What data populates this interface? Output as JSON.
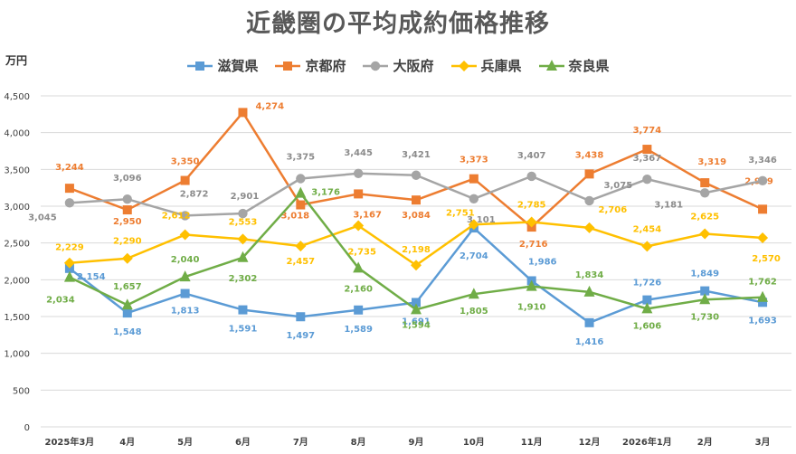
{
  "chart_data": {
    "type": "line",
    "title": "近畿圏の平均成約価格推移",
    "ylabel": "万円",
    "ylim": [
      0,
      4500
    ],
    "yticks": [
      "0",
      "500",
      "1,000",
      "1,500",
      "2,000",
      "2,500",
      "3,000",
      "3,500",
      "4,000",
      "4,500"
    ],
    "categories": [
      "2025年3月",
      "4月",
      "5月",
      "6月",
      "7月",
      "8月",
      "9月",
      "10月",
      "11月",
      "12月",
      "2026年1月",
      "2月",
      "3月"
    ],
    "grid": true,
    "legend": "top",
    "series": [
      {
        "name": "滋賀県",
        "color": "#5b9bd5",
        "marker": "square",
        "values": [
          2154,
          1548,
          1813,
          1591,
          1497,
          1589,
          1691,
          2704,
          1986,
          1416,
          1726,
          1849,
          1693
        ],
        "labels": [
          "2,154",
          "1,548",
          "1,813",
          "1,591",
          "1,497",
          "1,589",
          "1,691",
          "2,704",
          "1,986",
          "1,416",
          "1,726",
          "1,849",
          "1,693"
        ]
      },
      {
        "name": "京都府",
        "color": "#ed7d31",
        "marker": "square",
        "values": [
          3244,
          2950,
          3350,
          4274,
          3018,
          3167,
          3084,
          3373,
          2716,
          3438,
          3774,
          3319,
          2959
        ],
        "labels": [
          "3,244",
          "2,950",
          "3,350",
          "4,274",
          "3,018",
          "3,167",
          "3,084",
          "3,373",
          "2,716",
          "3,438",
          "3,774",
          "3,319",
          "2,959"
        ]
      },
      {
        "name": "大阪府",
        "color": "#a5a5a5",
        "marker": "circle",
        "values": [
          3045,
          3096,
          2872,
          2901,
          3375,
          3445,
          3421,
          3101,
          3407,
          3075,
          3367,
          3181,
          3346
        ],
        "labels": [
          "3,045",
          "3,096",
          "2,872",
          "2,901",
          "3,375",
          "3,445",
          "3,421",
          "3,101",
          "3,407",
          "3,075",
          "3,367",
          "3,181",
          "3,346"
        ]
      },
      {
        "name": "兵庫県",
        "color": "#ffc000",
        "marker": "diamond",
        "values": [
          2229,
          2290,
          2612,
          2553,
          2457,
          2735,
          2198,
          2751,
          2785,
          2706,
          2454,
          2625,
          2570
        ],
        "labels": [
          "2,229",
          "2,290",
          "2,612",
          "2,553",
          "2,457",
          "2,735",
          "2,198",
          "2,751",
          "2,785",
          "2,706",
          "2,454",
          "2,625",
          "2,570"
        ]
      },
      {
        "name": "奈良県",
        "color": "#70ad47",
        "marker": "triangle",
        "values": [
          2034,
          1657,
          2040,
          2302,
          3176,
          2160,
          1594,
          1805,
          1910,
          1834,
          1606,
          1730,
          1762
        ],
        "labels": [
          "2,034",
          "1,657",
          "2,040",
          "2,302",
          "3,176",
          "2,160",
          "1,594",
          "1,805",
          "1,910",
          "1,834",
          "1,606",
          "1,730",
          "1,762"
        ]
      }
    ]
  }
}
